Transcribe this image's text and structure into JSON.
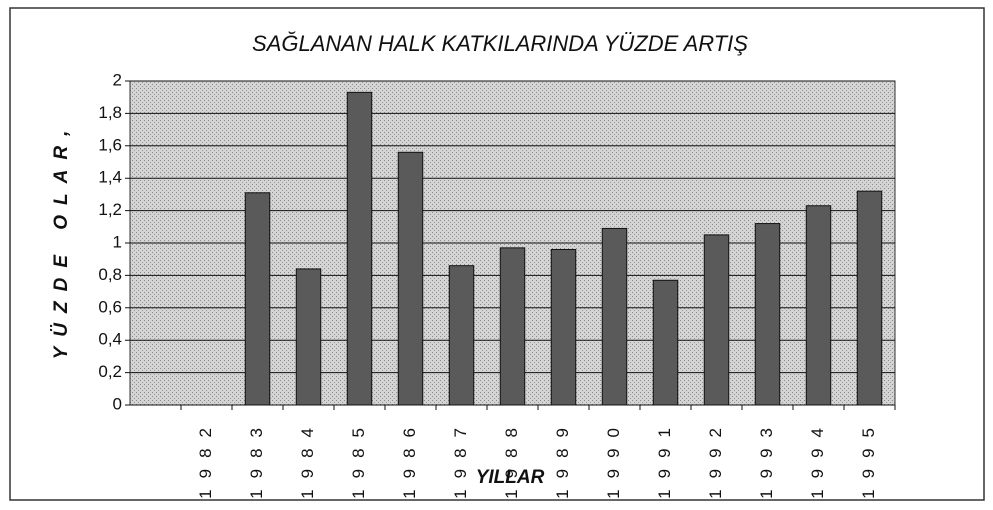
{
  "chart_data": {
    "type": "bar",
    "title": "SAĞLANAN HALK KATKILARINDA YÜZDE ARTIŞ",
    "x_label": "YILLAR",
    "y_label": "YÜZDE OLAR,",
    "categories": [
      null,
      "1982",
      "1983",
      "1984",
      "1985",
      "1986",
      "1987",
      "1988",
      "1989",
      "1990",
      "1991",
      "1992",
      "1993",
      "1994",
      "1995"
    ],
    "values": [
      null,
      null,
      1.31,
      0.84,
      1.93,
      1.56,
      0.86,
      0.97,
      0.96,
      1.09,
      0.77,
      1.05,
      1.12,
      1.23,
      1.32
    ],
    "color": "#5a5a5a",
    "ylim": [
      0,
      2
    ],
    "yticks": [
      0,
      {
        "value": 0.2,
        "label": "0,2"
      },
      {
        "value": 0.4,
        "label": "0,4"
      },
      {
        "value": 0.6,
        "label": "0,6"
      },
      {
        "value": 0.8,
        "label": "0,8"
      },
      1,
      {
        "value": 1.2,
        "label": "1,2"
      },
      {
        "value": 1.4,
        "label": "1,4"
      },
      {
        "value": 1.6,
        "label": "1,6"
      },
      {
        "value": 1.8,
        "label": "1,8"
      },
      2
    ],
    "grid": true
  }
}
